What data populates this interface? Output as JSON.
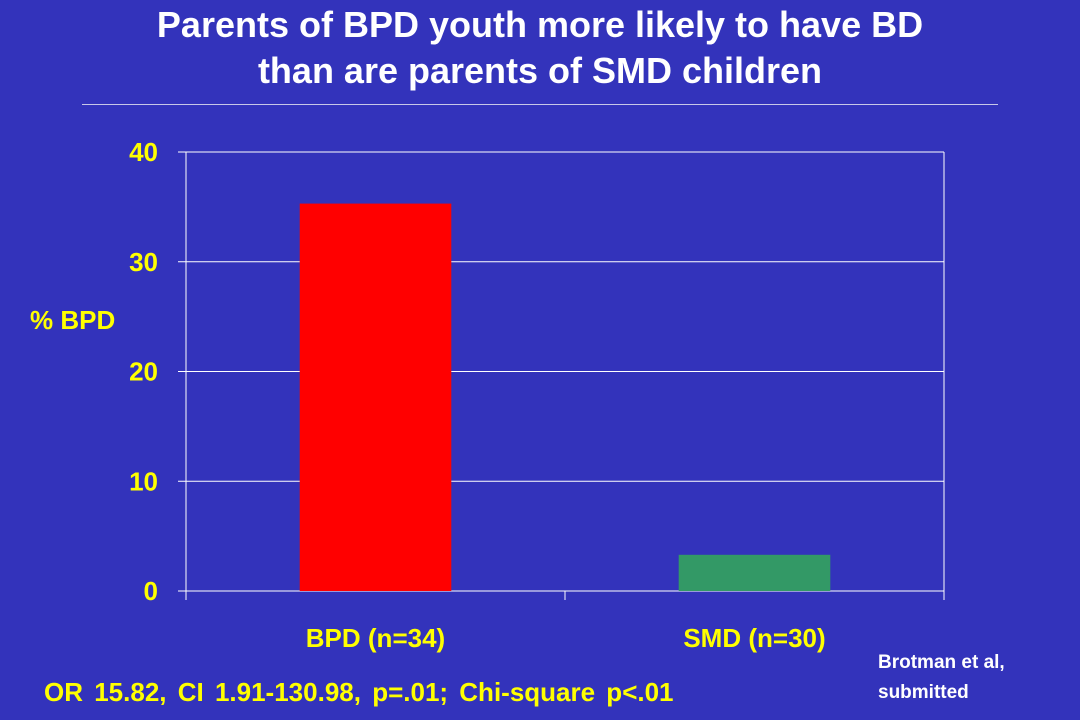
{
  "slide": {
    "title_line1": "Parents of BPD youth more likely to have BD",
    "title_line2": "than are parents of SMD children",
    "stats_text": "OR 15.82, CI 1.91-130.98, p=.01; Chi-square p<.01",
    "citation_line1": "Brotman et al,",
    "citation_line2": "submitted"
  },
  "colors": {
    "background": "#3333bb",
    "title": "#ffffff",
    "labels": "#ffff00",
    "grid": "#ffffff",
    "bar_bpd": "#ff0000",
    "bar_smd": "#339966"
  },
  "chart_data": {
    "type": "bar",
    "categories": [
      "BPD (n=34)",
      "SMD (n=30)"
    ],
    "values": [
      35.3,
      3.3
    ],
    "bar_colors": [
      "#ff0000",
      "#339966"
    ],
    "title": "",
    "xlabel": "",
    "ylabel": "% BPD",
    "ylim": [
      0,
      40
    ],
    "yticks": [
      0,
      10,
      20,
      30,
      40
    ],
    "grid": true,
    "legend": "none"
  }
}
